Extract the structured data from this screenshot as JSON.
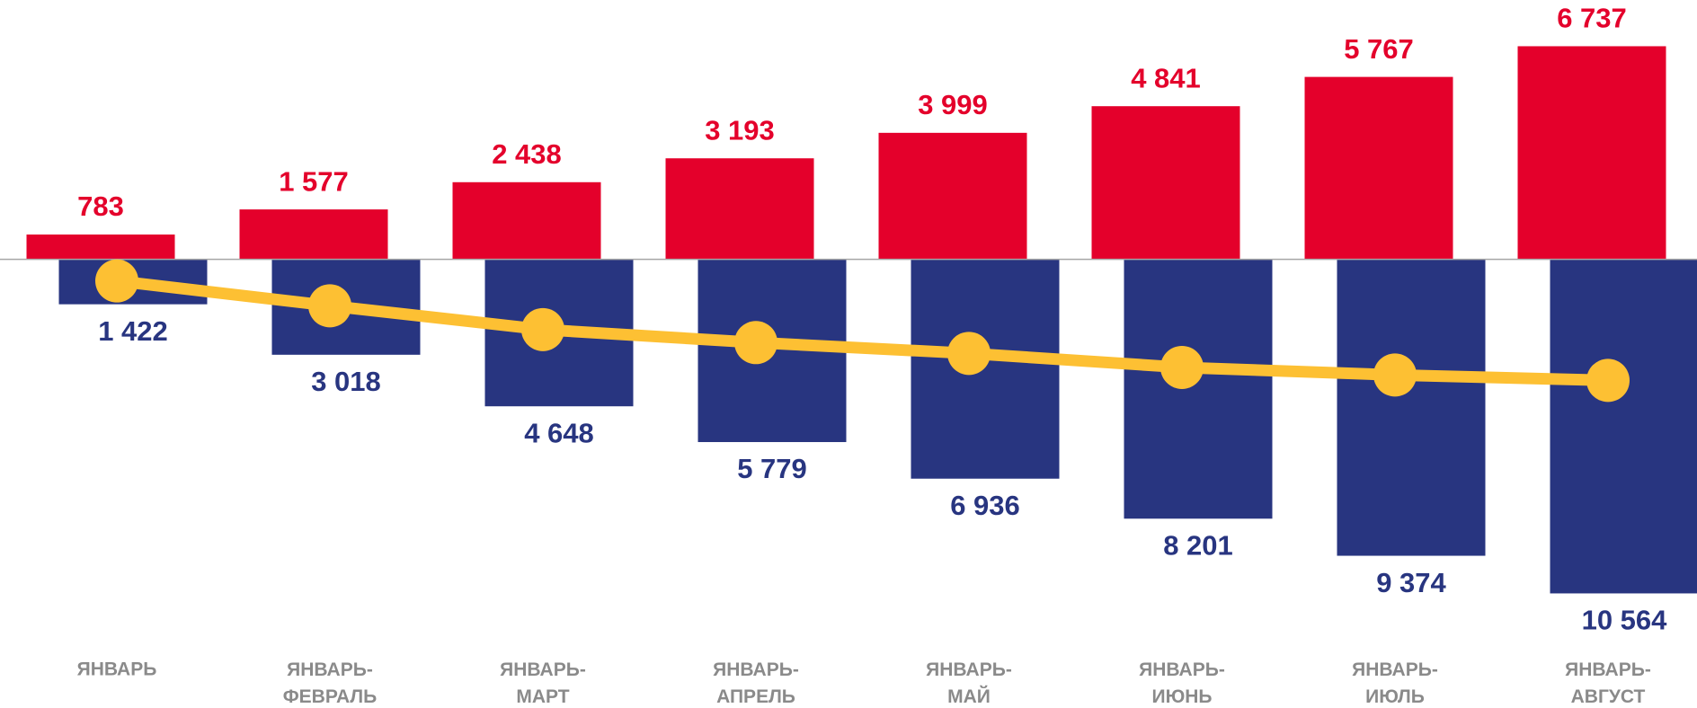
{
  "chart_data": {
    "type": "bar",
    "categories": [
      "ЯНВАРЬ",
      "ЯНВАРЬ-ФЕВРАЛЬ",
      "ЯНВАРЬ-МАРТ",
      "ЯНВАРЬ-АПРЕЛЬ",
      "ЯНВАРЬ-МАЙ",
      "ЯНВАРЬ-ИЮНЬ",
      "ЯНВАРЬ-ИЮЛЬ",
      "ЯНВАРЬ-АВГУСТ"
    ],
    "series": [
      {
        "type": "bar",
        "direction": "up",
        "color": "#e4002b",
        "values": [
          783,
          1577,
          2438,
          3193,
          3999,
          4841,
          5767,
          6737
        ],
        "value_labels": [
          "783",
          "1 577",
          "2 438",
          "3 193",
          "3 999",
          "4 841",
          "5 767",
          "6 737"
        ]
      },
      {
        "type": "bar",
        "direction": "down",
        "color": "#283580",
        "values": [
          1422,
          3018,
          4648,
          5779,
          6936,
          8201,
          9374,
          10564
        ],
        "value_labels": [
          "1 422",
          "3 018",
          "4 648",
          "5 779",
          "6 936",
          "8 201",
          "9 374",
          "10 564"
        ]
      },
      {
        "type": "line",
        "direction": "down",
        "color": "#fdc033",
        "values": [
          684,
          1470,
          2222,
          2633,
          2975,
          3419,
          3658,
          3829
        ]
      }
    ],
    "ylim": [
      -12000,
      8000
    ]
  }
}
